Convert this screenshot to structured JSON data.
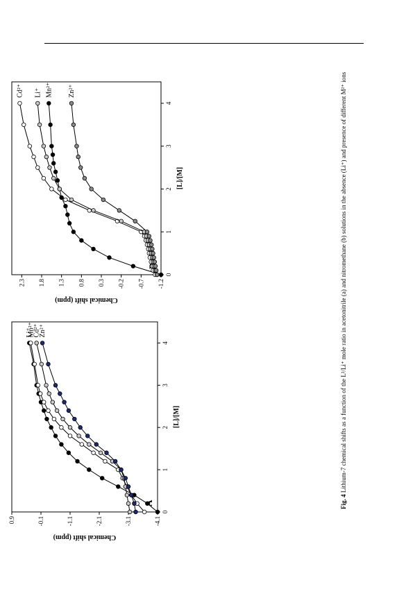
{
  "caption": {
    "label": "Fig. 4",
    "text": "Lithium-7 chemical shifts as a function of the L²/Li⁺ mole ratio in acetonitrile (a) and nitromethane (b) solutions in the absence (Li⁺) and presence of different M²⁺ ions"
  },
  "colors": {
    "Li+": "#000000",
    "Mn2+": "#ffffff",
    "Cd2+": "#c8c8c8",
    "Zn2+_A": "#1a2a7a",
    "Zn2+_B": "#8a8a8a"
  },
  "chart_data": [
    {
      "type": "line",
      "panel": "A",
      "xlabel": "[L]/[M]",
      "ylabel": "Chemical shift (ppm)",
      "xlim": [
        0,
        4.5
      ],
      "ylim": [
        -4.1,
        0.9
      ],
      "xticks": [
        0,
        1,
        2,
        3,
        4
      ],
      "yticks": [
        -4.1,
        -3.1,
        -2.1,
        -1.1,
        -0.1,
        0.9
      ],
      "ytick_labels": [
        "-4.1",
        "-3.1",
        "-2.1",
        "-1.1",
        "-0.1",
        "0.9"
      ],
      "series": [
        {
          "name": "Li+",
          "marker": "Li+",
          "x": [
            0,
            0.2,
            0.4,
            0.6,
            0.8,
            1.0,
            1.2,
            1.4,
            1.6,
            1.8,
            2.0,
            2.2,
            2.4,
            2.6,
            2.8,
            3.0,
            3.5,
            4.0
          ],
          "y": [
            -4.1,
            -3.75,
            -3.3,
            -2.75,
            -2.2,
            -1.75,
            -1.35,
            -1.05,
            -0.8,
            -0.6,
            -0.45,
            -0.3,
            -0.2,
            -0.1,
            -0.02,
            0.05,
            0.15,
            0.3
          ]
        },
        {
          "name": "Mn2+",
          "marker": "Mn2+",
          "x": [
            0,
            0.2,
            0.4,
            0.6,
            0.8,
            1.0,
            1.2,
            1.4,
            1.6,
            1.8,
            2.0,
            2.2,
            2.4,
            2.6,
            2.8,
            3.0,
            3.5,
            4.0
          ],
          "y": [
            -3.65,
            -3.4,
            -3.2,
            -3.05,
            -2.9,
            -2.75,
            -2.3,
            -1.9,
            -1.5,
            -1.1,
            -0.8,
            -0.55,
            -0.35,
            -0.2,
            -0.08,
            0.0,
            0.12,
            0.25
          ]
        },
        {
          "name": "Cd2+",
          "marker": "Cd2+",
          "x": [
            0,
            0.2,
            0.4,
            0.6,
            0.8,
            1.0,
            1.2,
            1.4,
            1.6,
            1.8,
            2.0,
            2.2,
            2.4,
            2.6,
            2.8,
            3.0,
            3.5,
            4.0
          ],
          "y": [
            -3.15,
            -3.1,
            -3.05,
            -3.0,
            -2.95,
            -2.85,
            -2.55,
            -2.15,
            -1.75,
            -1.4,
            -1.1,
            -0.85,
            -0.65,
            -0.5,
            -0.38,
            -0.28,
            -0.12,
            0.05
          ]
        },
        {
          "name": "Zn2+",
          "marker": "Zn2+_A",
          "x": [
            0,
            0.2,
            0.4,
            0.6,
            0.8,
            1.0,
            1.2,
            1.4,
            1.6,
            1.8,
            2.0,
            2.2,
            2.4,
            2.6,
            2.8,
            3.0,
            3.5,
            4.0
          ],
          "y": [
            -3.35,
            -3.3,
            -3.2,
            -3.1,
            -3.0,
            -2.85,
            -2.65,
            -2.35,
            -2.0,
            -1.7,
            -1.45,
            -1.25,
            -1.05,
            -0.9,
            -0.75,
            -0.6,
            -0.35,
            -0.15
          ]
        }
      ],
      "legend_labels": [
        "Li⁺",
        "Mn²⁺",
        "Cd²⁺",
        "Zn²⁺"
      ]
    },
    {
      "type": "line",
      "panel": "B",
      "xlabel": "[L]/[M]",
      "ylabel": "Chemical shift (ppm)",
      "xlim": [
        0,
        4.5
      ],
      "ylim": [
        -1.2,
        2.55
      ],
      "xticks": [
        0,
        1,
        2,
        3,
        4
      ],
      "yticks": [
        -1.2,
        -0.7,
        -0.2,
        0.3,
        0.8,
        1.3,
        1.8,
        2.3
      ],
      "ytick_labels": [
        "-1.2",
        "-0.7",
        "-0.2",
        "0.3",
        "0.8",
        "1.3",
        "1.8",
        "2.3"
      ],
      "series": [
        {
          "name": "Li+",
          "marker": "Li+",
          "x": [
            0,
            0.2,
            0.4,
            0.6,
            0.8,
            1.0,
            1.2,
            1.4,
            1.6,
            1.8,
            2.0,
            2.2,
            2.4,
            2.6,
            2.8,
            3.0,
            3.5,
            4.0
          ],
          "y": [
            -1.2,
            -0.5,
            0.1,
            0.5,
            0.8,
            1.0,
            1.1,
            1.15,
            1.2,
            1.3,
            1.35,
            1.4,
            1.45,
            1.5,
            1.52,
            1.55,
            1.58,
            1.62
          ]
        },
        {
          "name": "Mn2+",
          "marker": "Mn2+",
          "x": [
            0,
            0.1,
            0.2,
            0.3,
            0.4,
            0.5,
            0.6,
            0.7,
            0.8,
            0.9,
            1.0,
            1.25,
            1.5,
            1.75,
            2.0,
            2.25,
            2.5,
            2.75,
            3.0,
            3.5,
            4.0
          ],
          "y": [
            -1.05,
            -1.0,
            -0.98,
            -0.95,
            -0.92,
            -0.9,
            -0.88,
            -0.85,
            -0.82,
            -0.78,
            -0.7,
            -0.1,
            0.6,
            1.2,
            1.55,
            1.75,
            1.9,
            2.0,
            2.1,
            2.25,
            2.35
          ]
        },
        {
          "name": "Cd2+",
          "marker": "Cd2+",
          "x": [
            0,
            0.1,
            0.2,
            0.3,
            0.4,
            0.5,
            0.6,
            0.7,
            0.8,
            0.9,
            1.0,
            1.25,
            1.5,
            1.75,
            2.0,
            2.25,
            2.5,
            2.75,
            3.0,
            3.5,
            4.0
          ],
          "y": [
            -1.1,
            -1.05,
            -1.02,
            -1.0,
            -0.98,
            -0.95,
            -0.93,
            -0.9,
            -0.87,
            -0.83,
            -0.78,
            -0.2,
            0.5,
            1.05,
            1.35,
            1.5,
            1.6,
            1.68,
            1.75,
            1.85,
            1.9
          ]
        },
        {
          "name": "Zn2+",
          "marker": "Zn2+_B",
          "x": [
            0,
            0.1,
            0.2,
            0.3,
            0.4,
            0.5,
            0.6,
            0.7,
            0.8,
            0.9,
            1.0,
            1.25,
            1.5,
            1.75,
            2.0,
            2.25,
            2.5,
            2.75,
            3.0,
            3.5,
            4.0
          ],
          "y": [
            -1.1,
            -1.08,
            -1.06,
            -1.04,
            -1.02,
            -1.0,
            -0.98,
            -0.96,
            -0.93,
            -0.9,
            -0.85,
            -0.55,
            -0.15,
            0.25,
            0.55,
            0.72,
            0.82,
            0.88,
            0.92,
            1.0,
            1.05
          ]
        }
      ],
      "legend_labels": [
        "Mn²⁺",
        "Cd²⁺",
        "Li⁺",
        "Zn²⁺"
      ]
    }
  ]
}
